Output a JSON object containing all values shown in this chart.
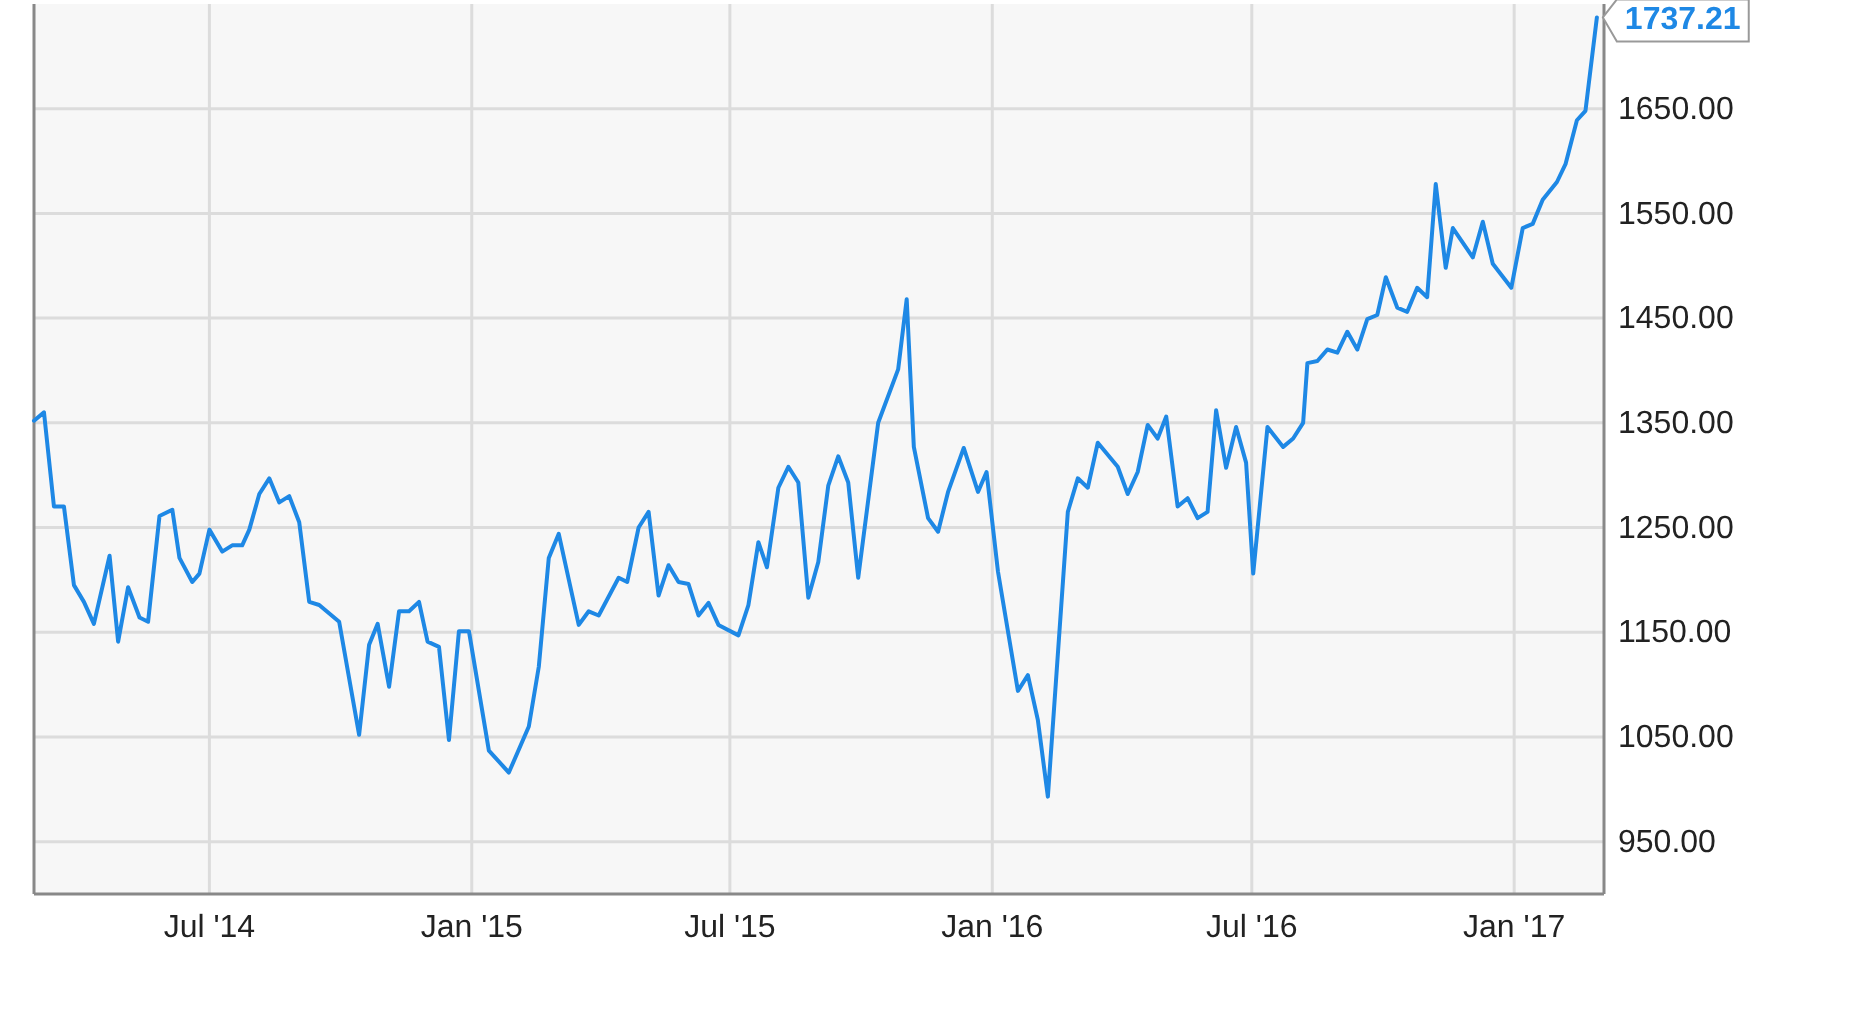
{
  "chart_data": {
    "type": "line",
    "x": [
      "2014-02-28",
      "2014-03-07",
      "2014-03-14",
      "2014-03-21",
      "2014-03-28",
      "2014-04-04",
      "2014-04-11",
      "2014-04-22",
      "2014-04-28",
      "2014-05-05",
      "2014-05-13",
      "2014-05-19",
      "2014-05-27",
      "2014-06-05",
      "2014-06-10",
      "2014-06-19",
      "2014-06-24",
      "2014-07-01",
      "2014-07-10",
      "2014-07-17",
      "2014-07-24",
      "2014-07-29",
      "2014-08-05",
      "2014-08-12",
      "2014-08-19",
      "2014-08-26",
      "2014-09-02",
      "2014-09-09",
      "2014-09-16",
      "2014-09-30",
      "2014-10-14",
      "2014-10-21",
      "2014-10-27",
      "2014-11-04",
      "2014-11-11",
      "2014-11-18",
      "2014-11-25",
      "2014-12-01",
      "2014-12-09",
      "2014-12-16",
      "2014-12-23",
      "2014-12-30",
      "2015-01-13",
      "2015-01-27",
      "2015-02-10",
      "2015-02-17",
      "2015-02-24",
      "2015-03-03",
      "2015-03-17",
      "2015-03-24",
      "2015-03-31",
      "2015-04-14",
      "2015-04-20",
      "2015-04-28",
      "2015-05-05",
      "2015-05-12",
      "2015-05-19",
      "2015-05-26",
      "2015-06-02",
      "2015-06-09",
      "2015-06-16",
      "2015-06-23",
      "2015-07-07",
      "2015-07-14",
      "2015-07-21",
      "2015-07-27",
      "2015-08-04",
      "2015-08-11",
      "2015-08-18",
      "2015-08-25",
      "2015-09-01",
      "2015-09-08",
      "2015-09-15",
      "2015-09-22",
      "2015-09-29",
      "2015-10-13",
      "2015-10-27",
      "2015-11-02",
      "2015-11-07",
      "2015-11-17",
      "2015-11-24",
      "2015-12-01",
      "2015-12-12",
      "2015-12-22",
      "2015-12-28",
      "2016-01-05",
      "2016-01-19",
      "2016-01-26",
      "2016-02-02",
      "2016-02-09",
      "2016-02-23",
      "2016-03-01",
      "2016-03-08",
      "2016-03-15",
      "2016-03-29",
      "2016-04-05",
      "2016-04-12",
      "2016-04-19",
      "2016-04-26",
      "2016-05-02",
      "2016-05-10",
      "2016-05-17",
      "2016-05-24",
      "2016-05-31",
      "2016-06-06",
      "2016-06-13",
      "2016-06-20",
      "2016-06-27",
      "2016-07-02",
      "2016-07-12",
      "2016-07-23",
      "2016-07-30",
      "2016-08-06",
      "2016-08-09",
      "2016-08-16",
      "2016-08-23",
      "2016-08-30",
      "2016-09-06",
      "2016-09-13",
      "2016-09-20",
      "2016-09-27",
      "2016-10-03",
      "2016-10-11",
      "2016-10-18",
      "2016-10-25",
      "2016-11-01",
      "2016-11-07",
      "2016-11-14",
      "2016-11-19",
      "2016-12-03",
      "2016-12-10",
      "2016-12-17",
      "2016-12-30",
      "2017-01-07",
      "2017-01-14",
      "2017-01-21",
      "2017-01-31",
      "2017-02-06",
      "2017-02-14",
      "2017-02-20",
      "2017-02-28"
    ],
    "series": [
      {
        "color": "#1e88e5",
        "values": [
          1352,
          1360,
          1270,
          1270,
          1195,
          1179,
          1158,
          1223,
          1141,
          1193,
          1164,
          1160,
          1261,
          1267,
          1221,
          1198,
          1206,
          1248,
          1227,
          1233,
          1233,
          1248,
          1282,
          1297,
          1274,
          1280,
          1255,
          1179,
          1176,
          1160,
          1052,
          1138,
          1158,
          1098,
          1170,
          1170,
          1179,
          1141,
          1136,
          1047,
          1151,
          1151,
          1037,
          1016,
          1060,
          1117,
          1221,
          1244,
          1157,
          1170,
          1166,
          1202,
          1198,
          1250,
          1265,
          1185,
          1214,
          1198,
          1196,
          1166,
          1178,
          1157,
          1147,
          1176,
          1236,
          1212,
          1288,
          1308,
          1293,
          1183,
          1217,
          1290,
          1318,
          1293,
          1202,
          1350,
          1401,
          1468,
          1327,
          1259,
          1246,
          1284,
          1326,
          1284,
          1303,
          1208,
          1094,
          1109,
          1066,
          993,
          1265,
          1297,
          1288,
          1331,
          1308,
          1282,
          1303,
          1348,
          1335,
          1356,
          1270,
          1278,
          1259,
          1265,
          1362,
          1307,
          1346,
          1312,
          1206,
          1346,
          1327,
          1335,
          1350,
          1407,
          1409,
          1420,
          1417,
          1437,
          1420,
          1449,
          1453,
          1489,
          1460,
          1456,
          1479,
          1470,
          1578,
          1498,
          1536,
          1508,
          1542,
          1502,
          1479,
          1536,
          1540,
          1563,
          1580,
          1597,
          1639,
          1648,
          1737.21
        ]
      }
    ],
    "xlim": [
      "2014-02-28",
      "2017-03-05"
    ],
    "xticks": [
      {
        "value": "2014-07-01",
        "label": "Jul '14"
      },
      {
        "value": "2015-01-01",
        "label": "Jan '15"
      },
      {
        "value": "2015-07-01",
        "label": "Jul '15"
      },
      {
        "value": "2016-01-01",
        "label": "Jan '16"
      },
      {
        "value": "2016-07-01",
        "label": "Jul '16"
      },
      {
        "value": "2017-01-01",
        "label": "Jan '17"
      }
    ],
    "ylim": [
      900,
      1750
    ],
    "yticks": [
      {
        "value": 950,
        "label": "950.00"
      },
      {
        "value": 1050,
        "label": "1050.00"
      },
      {
        "value": 1150,
        "label": "1150.00"
      },
      {
        "value": 1250,
        "label": "1250.00"
      },
      {
        "value": 1350,
        "label": "1350.00"
      },
      {
        "value": 1450,
        "label": "1450.00"
      },
      {
        "value": 1550,
        "label": "1550.00"
      },
      {
        "value": 1650,
        "label": "1650.00"
      }
    ],
    "annotations": [
      {
        "text": "1737.21",
        "x": "2017-02-28",
        "y": 1737.21
      }
    ],
    "grid": true,
    "marker": "none",
    "line_style": "solid"
  }
}
